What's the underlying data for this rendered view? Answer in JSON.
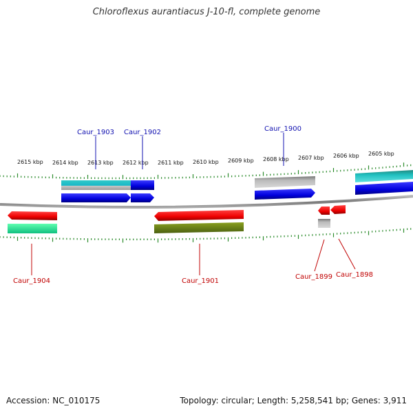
{
  "title": "Chloroflexus aurantiacus J-10-fl, complete genome",
  "footer": {
    "accession": "Accession: NC_010175",
    "topology": "Topology: circular; Length: 5,258,541 bp; Genes: 3,911"
  },
  "colors": {
    "forward_label": "#1010b0",
    "reverse_label": "#c00000",
    "backbone": "#888888",
    "ticks": "#2a8a2a"
  },
  "scale": {
    "unit": "kbp",
    "labels": [
      "2615 kbp",
      "2614 kbp",
      "2613 kbp",
      "2612 kbp",
      "2611 kbp",
      "2610 kbp",
      "2609 kbp",
      "2608 kbp",
      "2607 kbp",
      "2606 kbp",
      "2605 kbp"
    ]
  },
  "genes": {
    "forward": [
      "Caur_1903",
      "Caur_1902",
      "Caur_1900"
    ],
    "reverse": [
      "Caur_1904",
      "Caur_1901",
      "Caur_1899",
      "Caur_1898"
    ]
  }
}
